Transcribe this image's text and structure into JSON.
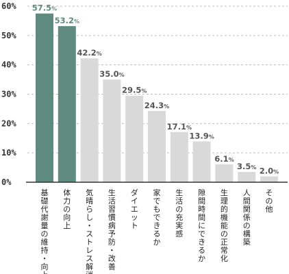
{
  "chart_data": {
    "type": "bar",
    "categories": [
      "基礎代謝量の維持・向上",
      "体力の向上",
      "気晴らし・ストレス解消",
      "生活習慣病予防・改善",
      "ダイエット",
      "家でもできるか",
      "生活の充実感",
      "隙間時間にできるか",
      "生理的機能の正常化",
      "人間関係の構築",
      "その他"
    ],
    "values": [
      57.5,
      53.2,
      42.2,
      35.0,
      29.5,
      24.3,
      17.1,
      13.9,
      6.1,
      3.5,
      2.0
    ],
    "value_labels": [
      "57.5",
      "53.2",
      "42.2",
      "35.0",
      "29.5",
      "24.3",
      "17.1",
      "13.9",
      "6.1",
      "3.5",
      "2.0"
    ],
    "value_unit": "%",
    "highlighted": [
      true,
      true,
      false,
      false,
      false,
      false,
      false,
      false,
      false,
      false,
      false
    ],
    "yticks": [
      "0%",
      "10%",
      "20%",
      "30%",
      "40%",
      "50%",
      "60%"
    ],
    "ylim": [
      0,
      60
    ],
    "grid": true,
    "legend": "none",
    "colors": {
      "highlight_bar": "#5f8b7e",
      "highlight_text": "#5f8b7e",
      "bar": "#d9d9d9",
      "text": "#555555",
      "grid": "#bdbdbd",
      "axis": "#333333"
    }
  }
}
